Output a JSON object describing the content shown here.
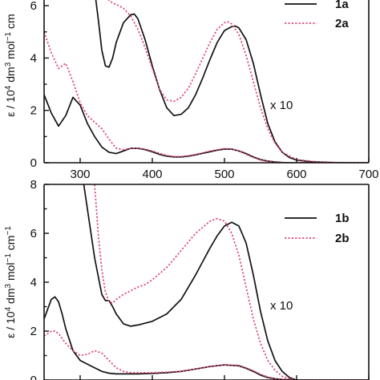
{
  "chart_data": [
    {
      "type": "line",
      "panel": "top",
      "xlim": [
        250,
        700
      ],
      "ylim": [
        0,
        6.4
      ],
      "x_ticks": [
        300,
        400,
        500,
        600,
        700
      ],
      "y_ticks": [
        0,
        2,
        4,
        6
      ],
      "ylabel_main": "ε / 10",
      "ylabel_sup1": "4",
      "ylabel_mid": " dm",
      "ylabel_sup2": "3",
      "ylabel_mid2": " mol",
      "ylabel_sup3": "−1",
      "ylabel_end": " cm",
      "annotation": "x 10",
      "legend": [
        {
          "label": "1a",
          "color": "#111111",
          "dash": "solid"
        },
        {
          "label": "2a",
          "color": "#e0457b",
          "dash": "dotted"
        }
      ],
      "series": [
        {
          "name": "1a",
          "color": "#111111",
          "dash": "solid",
          "x": [
            250,
            260,
            270,
            280,
            290,
            300,
            310,
            320,
            330,
            340,
            350,
            360,
            370,
            380,
            390,
            400,
            410,
            420,
            430,
            440,
            450,
            460,
            470,
            480,
            490,
            500,
            510,
            520,
            530,
            540,
            550,
            560,
            570,
            580,
            590,
            600,
            620,
            650,
            700
          ],
          "y": [
            2.6,
            1.9,
            1.4,
            1.8,
            2.5,
            2.2,
            1.5,
            1.0,
            0.6,
            0.4,
            0.35,
            0.45,
            0.55,
            0.55,
            0.5,
            0.42,
            0.32,
            0.25,
            0.22,
            0.22,
            0.25,
            0.3,
            0.36,
            0.42,
            0.48,
            0.52,
            0.52,
            0.45,
            0.35,
            0.22,
            0.12,
            0.06,
            0.03,
            0.01,
            0,
            0,
            0,
            0,
            0
          ]
        },
        {
          "name": "2a",
          "color": "#e0457b",
          "dash": "dotted",
          "x": [
            250,
            260,
            270,
            280,
            290,
            300,
            310,
            320,
            330,
            340,
            350,
            360,
            370,
            380,
            390,
            400,
            410,
            420,
            430,
            440,
            450,
            460,
            470,
            480,
            490,
            500,
            510,
            520,
            530,
            540,
            550,
            560,
            570,
            580,
            590,
            600,
            620,
            650,
            700
          ],
          "y": [
            5.0,
            4.2,
            3.6,
            3.8,
            3.1,
            2.3,
            1.8,
            1.55,
            1.3,
            0.9,
            0.55,
            0.5,
            0.55,
            0.55,
            0.52,
            0.45,
            0.36,
            0.28,
            0.24,
            0.24,
            0.27,
            0.32,
            0.38,
            0.45,
            0.5,
            0.54,
            0.53,
            0.45,
            0.32,
            0.2,
            0.1,
            0.05,
            0.02,
            0.01,
            0,
            0,
            0,
            0,
            0
          ]
        },
        {
          "name": "1a x 10",
          "color": "#111111",
          "dash": "solid",
          "x": [
            320,
            325,
            330,
            335,
            340,
            345,
            350,
            360,
            370,
            375,
            380,
            390,
            400,
            410,
            420,
            430,
            440,
            450,
            460,
            470,
            480,
            490,
            500,
            510,
            515,
            520,
            530,
            540,
            550,
            560,
            570,
            580,
            590,
            600,
            620,
            650,
            700
          ],
          "y": [
            6.6,
            5.5,
            4.3,
            3.7,
            3.65,
            4.0,
            4.6,
            5.35,
            5.65,
            5.68,
            5.5,
            4.7,
            3.7,
            2.8,
            2.1,
            1.8,
            1.85,
            2.1,
            2.6,
            3.25,
            3.95,
            4.6,
            5.05,
            5.2,
            5.22,
            5.15,
            4.7,
            3.8,
            2.6,
            1.5,
            0.8,
            0.4,
            0.2,
            0.1,
            0.04,
            0.01,
            0
          ]
        },
        {
          "name": "2a x 10",
          "color": "#e0457b",
          "dash": "dotted",
          "x": [
            332,
            340,
            345,
            350,
            360,
            370,
            380,
            390,
            400,
            410,
            420,
            430,
            440,
            450,
            460,
            470,
            480,
            490,
            500,
            505,
            510,
            520,
            530,
            540,
            550,
            560,
            570,
            580,
            600,
            630,
            660,
            700
          ],
          "y": [
            6.6,
            6.2,
            6.1,
            6.05,
            5.9,
            5.6,
            5.1,
            4.4,
            3.6,
            2.8,
            2.4,
            2.35,
            2.5,
            2.85,
            3.4,
            4.0,
            4.6,
            5.1,
            5.35,
            5.38,
            5.3,
            4.9,
            4.1,
            3.1,
            2.1,
            1.3,
            0.75,
            0.4,
            0.12,
            0.03,
            0.01,
            0
          ]
        }
      ]
    },
    {
      "type": "line",
      "panel": "bottom",
      "xlim": [
        250,
        700
      ],
      "ylim": [
        0,
        8
      ],
      "y_ticks": [
        0,
        2,
        4,
        6,
        8
      ],
      "ylabel_main": "ε / 10",
      "ylabel_sup1": "4",
      "ylabel_mid": " dm",
      "ylabel_sup2": "3",
      "ylabel_mid2": " mol",
      "ylabel_sup3": "−1",
      "ylabel_end": " cm",
      "ylabel_sup4": "−1",
      "annotation": "x 10",
      "legend": [
        {
          "label": "1b",
          "color": "#111111",
          "dash": "solid"
        },
        {
          "label": "2b",
          "color": "#e0457b",
          "dash": "dotted"
        }
      ],
      "series": [
        {
          "name": "1b",
          "color": "#111111",
          "dash": "solid",
          "x": [
            250,
            255,
            260,
            265,
            270,
            275,
            280,
            290,
            300,
            310,
            320,
            330,
            340,
            350,
            360,
            370,
            380,
            400,
            420,
            440,
            460,
            480,
            500,
            520,
            530,
            540,
            550,
            560,
            570,
            580,
            600,
            650,
            700
          ],
          "y": [
            2.5,
            2.9,
            3.3,
            3.4,
            3.2,
            2.7,
            2.1,
            1.2,
            0.8,
            0.65,
            0.5,
            0.35,
            0.28,
            0.25,
            0.25,
            0.25,
            0.25,
            0.27,
            0.3,
            0.35,
            0.45,
            0.55,
            0.62,
            0.58,
            0.48,
            0.35,
            0.2,
            0.1,
            0.05,
            0.02,
            0,
            0,
            0
          ]
        },
        {
          "name": "2b",
          "color": "#e0457b",
          "dash": "dotted",
          "x": [
            250,
            255,
            260,
            265,
            270,
            275,
            280,
            290,
            300,
            310,
            320,
            330,
            340,
            350,
            360,
            370,
            380,
            400,
            420,
            440,
            460,
            480,
            500,
            520,
            530,
            540,
            550,
            560,
            570,
            580,
            600,
            650,
            700
          ],
          "y": [
            1.8,
            1.9,
            2.0,
            2.0,
            1.9,
            1.7,
            1.5,
            1.2,
            1.0,
            1.05,
            1.2,
            1.1,
            0.8,
            0.5,
            0.35,
            0.3,
            0.3,
            0.3,
            0.32,
            0.36,
            0.45,
            0.55,
            0.62,
            0.6,
            0.5,
            0.38,
            0.24,
            0.12,
            0.06,
            0.02,
            0,
            0,
            0
          ]
        },
        {
          "name": "1b x 10",
          "color": "#111111",
          "dash": "solid",
          "x": [
            300,
            310,
            320,
            330,
            335,
            340,
            345,
            350,
            360,
            370,
            380,
            400,
            420,
            440,
            460,
            480,
            490,
            500,
            510,
            520,
            530,
            540,
            550,
            560,
            570,
            580,
            590,
            600
          ],
          "y": [
            9.0,
            7.0,
            5.0,
            3.5,
            3.25,
            3.25,
            3.0,
            2.7,
            2.3,
            2.2,
            2.25,
            2.4,
            2.7,
            3.3,
            4.3,
            5.4,
            5.9,
            6.3,
            6.45,
            6.3,
            5.6,
            4.3,
            2.8,
            1.6,
            0.8,
            0.35,
            0.1,
            0
          ]
        },
        {
          "name": "2b x 10",
          "color": "#e0457b",
          "dash": "dotted",
          "x": [
            318,
            320,
            325,
            330,
            335,
            340,
            345,
            350,
            360,
            370,
            380,
            390,
            400,
            420,
            440,
            460,
            480,
            490,
            500,
            510,
            520,
            530,
            540,
            550,
            560,
            570,
            580,
            590,
            600
          ],
          "y": [
            9.0,
            8.0,
            6.0,
            4.5,
            3.6,
            3.2,
            3.15,
            3.3,
            3.5,
            3.65,
            3.8,
            3.9,
            4.1,
            4.6,
            5.3,
            6.0,
            6.5,
            6.6,
            6.5,
            6.0,
            5.1,
            3.8,
            2.5,
            1.5,
            0.8,
            0.4,
            0.15,
            0.05,
            0
          ]
        }
      ]
    }
  ]
}
